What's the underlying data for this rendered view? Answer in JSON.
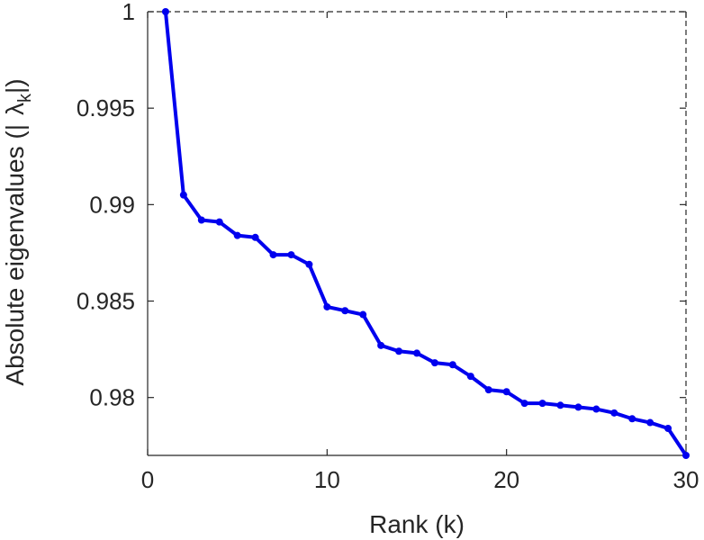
{
  "chart_data": {
    "type": "line",
    "xlabel": "Rank (k)",
    "ylabel": "Absolute eigenvalues (|λk|)",
    "ylabel_parts": {
      "prefix": "Absolute eigenvalues (|",
      "symbol": "λ",
      "subscript": "k",
      "suffix": "|)"
    },
    "xlim": [
      0,
      30
    ],
    "ylim": [
      0.977,
      1.0
    ],
    "xticks": [
      "0",
      "10",
      "20",
      "30"
    ],
    "yticks": [
      "1",
      "0.995",
      "0.99",
      "0.985",
      "0.98"
    ],
    "xtick_values": [
      0,
      10,
      20,
      30
    ],
    "ytick_values": [
      1.0,
      0.995,
      0.99,
      0.985,
      0.98
    ],
    "grid": false,
    "color": "#0000ee",
    "series": [
      {
        "x": [
          1,
          2,
          3,
          4,
          5,
          6,
          7,
          8,
          9,
          10,
          11,
          12,
          13,
          14,
          15,
          16,
          17,
          18,
          19,
          20,
          21,
          22,
          23,
          24,
          25,
          26,
          27,
          28,
          29,
          30
        ],
        "values": [
          1.0,
          0.9905,
          0.9892,
          0.9891,
          0.9884,
          0.9883,
          0.9874,
          0.9874,
          0.9869,
          0.9847,
          0.9845,
          0.9843,
          0.9827,
          0.9824,
          0.9823,
          0.9818,
          0.9817,
          0.9811,
          0.9804,
          0.9803,
          0.9797,
          0.9797,
          0.9796,
          0.9795,
          0.9794,
          0.9792,
          0.9789,
          0.9787,
          0.9784,
          0.977
        ]
      }
    ]
  }
}
